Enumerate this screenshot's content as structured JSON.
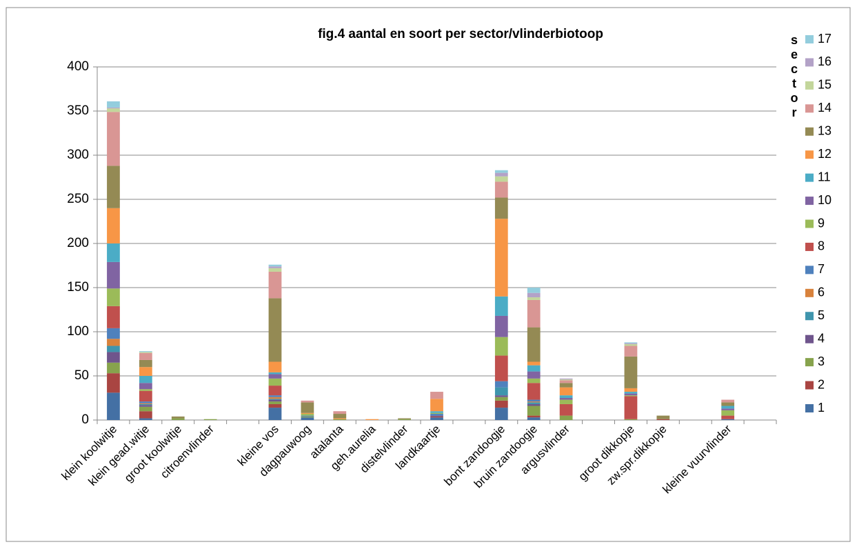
{
  "chart_data": {
    "type": "stacked_bar",
    "title": "fig.4 aantal en soort per sector/vlinderbiotoop",
    "legend_title": "sector",
    "categories": [
      "klein koolwitje",
      "klein gead.witje",
      "groot koolwitje",
      "citroenvlinder",
      null,
      "kleine vos",
      "dagpauwoog",
      "atalanta",
      "geh.aurelia",
      "distelvlinder",
      "landkaartje",
      null,
      "bont zandoogje",
      "bruin zandoogje",
      "argusvlinder",
      null,
      "groot dikkopje",
      "zw.spr.dikkopje",
      null,
      "kleine vuurvlinder",
      null
    ],
    "ylim": [
      0,
      400
    ],
    "yticks": [
      0,
      50,
      100,
      150,
      200,
      250,
      300,
      350,
      400
    ],
    "grid": true,
    "legend": "right",
    "series": [
      {
        "name": "1",
        "color": "#4470A4",
        "values": [
          31,
          2,
          0,
          0,
          null,
          14,
          3,
          0,
          0,
          0,
          3,
          null,
          14,
          3,
          0,
          null,
          0,
          0,
          null,
          1,
          null
        ]
      },
      {
        "name": "2",
        "color": "#A94542",
        "values": [
          22,
          8,
          0,
          0,
          null,
          4,
          0,
          0,
          0,
          0,
          1,
          null,
          8,
          2,
          0,
          null,
          0,
          1,
          null,
          0,
          null
        ]
      },
      {
        "name": "3",
        "color": "#87A34D",
        "values": [
          12,
          5,
          2,
          1,
          null,
          3,
          1,
          1,
          0,
          1,
          0,
          null,
          4,
          11,
          5,
          null,
          1,
          0,
          null,
          0,
          null
        ]
      },
      {
        "name": "4",
        "color": "#6F558C",
        "values": [
          12,
          2,
          0,
          0,
          null,
          2,
          0,
          0,
          0,
          0,
          1,
          null,
          2,
          2,
          0,
          null,
          0,
          0,
          null,
          0,
          null
        ]
      },
      {
        "name": "5",
        "color": "#3F95AD",
        "values": [
          7,
          1,
          0,
          0,
          null,
          1,
          0,
          0,
          0,
          0,
          0,
          null,
          9,
          2,
          0,
          null,
          0,
          0,
          null,
          0,
          null
        ]
      },
      {
        "name": "6",
        "color": "#D8823C",
        "values": [
          8,
          1,
          0,
          0,
          null,
          2,
          0,
          0,
          0,
          0,
          0,
          null,
          0,
          1,
          0,
          null,
          0,
          0,
          null,
          0,
          null
        ]
      },
      {
        "name": "7",
        "color": "#4F81BD",
        "values": [
          12,
          2,
          0,
          0,
          null,
          2,
          1,
          0,
          0,
          0,
          2,
          null,
          7,
          2,
          0,
          null,
          0,
          0,
          null,
          0,
          null
        ]
      },
      {
        "name": "8",
        "color": "#C0504D",
        "values": [
          25,
          12,
          0,
          0,
          null,
          11,
          0,
          0,
          0,
          0,
          0,
          null,
          29,
          19,
          13,
          null,
          26,
          0,
          null,
          4,
          null
        ]
      },
      {
        "name": "9",
        "color": "#9BBB59",
        "values": [
          20,
          2,
          0,
          0,
          null,
          8,
          2,
          0,
          0,
          0,
          1,
          null,
          21,
          5,
          5,
          null,
          1,
          0,
          null,
          6,
          null
        ]
      },
      {
        "name": "10",
        "color": "#8064A2",
        "values": [
          30,
          7,
          0,
          0,
          null,
          5,
          0,
          0,
          0,
          0,
          0,
          null,
          24,
          8,
          2,
          null,
          2,
          0,
          null,
          2,
          null
        ]
      },
      {
        "name": "11",
        "color": "#4BACC6",
        "values": [
          21,
          8,
          0,
          0,
          null,
          2,
          0,
          0,
          0,
          0,
          2,
          null,
          22,
          7,
          3,
          null,
          2,
          0,
          null,
          3,
          null
        ]
      },
      {
        "name": "12",
        "color": "#F79646",
        "values": [
          40,
          10,
          0,
          0,
          null,
          12,
          1,
          1,
          1,
          0,
          14,
          null,
          88,
          4,
          9,
          null,
          4,
          0,
          null,
          0,
          null
        ]
      },
      {
        "name": "13",
        "color": "#948A54",
        "values": [
          48,
          8,
          2,
          0,
          null,
          72,
          12,
          5,
          0,
          1,
          0,
          null,
          24,
          39,
          5,
          null,
          36,
          4,
          null,
          4,
          null
        ]
      },
      {
        "name": "14",
        "color": "#D99694",
        "values": [
          61,
          8,
          0,
          0,
          null,
          30,
          2,
          3,
          0,
          0,
          8,
          null,
          18,
          31,
          3,
          null,
          12,
          0,
          null,
          3,
          null
        ]
      },
      {
        "name": "15",
        "color": "#C3D69B",
        "values": [
          4,
          1,
          0,
          0,
          null,
          4,
          0,
          0,
          0,
          0,
          0,
          null,
          6,
          3,
          1,
          null,
          2,
          0,
          null,
          0,
          null
        ]
      },
      {
        "name": "16",
        "color": "#B3A2C7",
        "values": [
          1,
          0,
          0,
          0,
          null,
          2,
          0,
          0,
          0,
          0,
          0,
          null,
          4,
          5,
          1,
          null,
          1,
          0,
          null,
          0,
          null
        ]
      },
      {
        "name": "17",
        "color": "#93CDDD",
        "values": [
          7,
          1,
          0,
          0,
          null,
          2,
          0,
          0,
          0,
          0,
          0,
          null,
          3,
          6,
          0,
          null,
          1,
          0,
          null,
          0,
          null
        ]
      }
    ]
  }
}
